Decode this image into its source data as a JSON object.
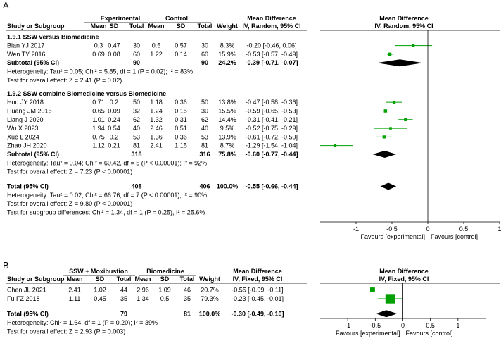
{
  "chart_data": [
    {
      "type": "forest",
      "panel_label": "A",
      "group_headers": [
        {
          "label": "Experimental"
        },
        {
          "label": "Control"
        }
      ],
      "column_headers": {
        "study": "Study or Subgroup",
        "mean1": "Mean",
        "sd1": "SD",
        "total1": "Total",
        "mean2": "Mean",
        "sd2": "SD",
        "total2": "Total",
        "weight": "Weight",
        "md_title": "Mean Difference",
        "md_method": "IV, Random, 95% CI",
        "plot_title": "Mean Difference",
        "plot_method": "IV, Random, 95% CI"
      },
      "subgroups": [
        {
          "title": "1.9.1 SSW versus Biomedicine",
          "studies": [
            {
              "name": "Bian YJ 2017",
              "mean1": "0.3",
              "sd1": "0.47",
              "n1": "30",
              "mean2": "0.5",
              "sd2": "0.57",
              "n2": "30",
              "weight": "8.3%",
              "ci_text": "-0.20 [-0.46, 0.06]",
              "md": -0.2,
              "lo": -0.46,
              "hi": 0.06,
              "w": 8.3
            },
            {
              "name": "Wen TY 2016",
              "mean1": "0.69",
              "sd1": "0.08",
              "n1": "60",
              "mean2": "1.22",
              "sd2": "0.14",
              "n2": "60",
              "weight": "15.9%",
              "ci_text": "-0.53 [-0.57, -0.49]",
              "md": -0.53,
              "lo": -0.57,
              "hi": -0.49,
              "w": 15.9
            }
          ],
          "subtotal": {
            "label": "Subtotal (95% CI)",
            "n1": "90",
            "n2": "90",
            "weight": "24.2%",
            "ci_text": "-0.39 [-0.71, -0.07]",
            "md": -0.39,
            "lo": -0.71,
            "hi": -0.07
          },
          "heterogeneity": "Heterogeneity: Tau² = 0.05; Chi² = 5.85, df = 1 (P = 0.02); I² = 83%",
          "overall_effect": "Test for overall effect: Z = 2.41 (P = 0.02)"
        },
        {
          "title": "1.9.2 SSW combine Biomedicine versus Biomedicine",
          "studies": [
            {
              "name": "Hou JY 2018",
              "mean1": "0.71",
              "sd1": "0.2",
              "n1": "50",
              "mean2": "1.18",
              "sd2": "0.36",
              "n2": "50",
              "weight": "13.8%",
              "ci_text": "-0.47 [-0.58, -0.36]",
              "md": -0.47,
              "lo": -0.58,
              "hi": -0.36,
              "w": 13.8
            },
            {
              "name": "Huang JM 2016",
              "mean1": "0.65",
              "sd1": "0.09",
              "n1": "32",
              "mean2": "1.24",
              "sd2": "0.15",
              "n2": "30",
              "weight": "15.5%",
              "ci_text": "-0.59 [-0.65, -0.53]",
              "md": -0.59,
              "lo": -0.65,
              "hi": -0.53,
              "w": 15.5
            },
            {
              "name": "Liang J 2020",
              "mean1": "1.01",
              "sd1": "0.24",
              "n1": "62",
              "mean2": "1.32",
              "sd2": "0.31",
              "n2": "62",
              "weight": "14.4%",
              "ci_text": "-0.31 [-0.41, -0.21]",
              "md": -0.31,
              "lo": -0.41,
              "hi": -0.21,
              "w": 14.4
            },
            {
              "name": "Wu X 2023",
              "mean1": "1.94",
              "sd1": "0.54",
              "n1": "40",
              "mean2": "2.46",
              "sd2": "0.51",
              "n2": "40",
              "weight": "9.5%",
              "ci_text": "-0.52 [-0.75, -0.29]",
              "md": -0.52,
              "lo": -0.75,
              "hi": -0.29,
              "w": 9.5
            },
            {
              "name": "Xue L 2024",
              "mean1": "0.75",
              "sd1": "0.2",
              "n1": "53",
              "mean2": "1.36",
              "sd2": "0.36",
              "n2": "53",
              "weight": "13.9%",
              "ci_text": "-0.61 [-0.72, -0.50]",
              "md": -0.61,
              "lo": -0.72,
              "hi": -0.5,
              "w": 13.9
            },
            {
              "name": "Zhao JH 2020",
              "mean1": "1.12",
              "sd1": "0.21",
              "n1": "81",
              "mean2": "2.41",
              "sd2": "1.15",
              "n2": "81",
              "weight": "8.7%",
              "ci_text": "-1.29 [-1.54, -1.04]",
              "md": -1.29,
              "lo": -1.54,
              "hi": -1.04,
              "w": 8.7
            }
          ],
          "subtotal": {
            "label": "Subtotal (95% CI)",
            "n1": "318",
            "n2": "316",
            "weight": "75.8%",
            "ci_text": "-0.60 [-0.77, -0.44]",
            "md": -0.6,
            "lo": -0.77,
            "hi": -0.44
          },
          "heterogeneity": "Heterogeneity: Tau² = 0.04; Chi² = 60.42, df = 5 (P < 0.00001); I² = 92%",
          "overall_effect": "Test for overall effect: Z = 7.23 (P < 0.00001)"
        }
      ],
      "total": {
        "label": "Total (95% CI)",
        "n1": "408",
        "n2": "406",
        "weight": "100.0%",
        "ci_text": "-0.55 [-0.66, -0.44]",
        "md": -0.55,
        "lo": -0.66,
        "hi": -0.44
      },
      "total_heterogeneity": "Heterogeneity: Tau² = 0.02; Chi² = 66.76, df = 7 (P < 0.00001); I² = 90%",
      "total_effect": "Test for overall effect: Z = 9.80 (P < 0.00001)",
      "subgroup_differences": "Test for subgroup differences: Chi² = 1.34, df = 1 (P = 0.25), I² = 25.6%",
      "x_axis": {
        "min": -1.5,
        "max": 1.0,
        "ticks": [
          -1,
          -0.5,
          0,
          0.5,
          1
        ],
        "tick_labels": [
          "-1",
          "-0.5",
          "0",
          "0.5",
          "1"
        ]
      },
      "favours_left": "Favours [experimental]",
      "favours_right": "Favours [control]"
    },
    {
      "type": "forest",
      "panel_label": "B",
      "group_headers": [
        {
          "label": "SSW + Moxibustion"
        },
        {
          "label": "Biomedicine"
        }
      ],
      "column_headers": {
        "study": "Study or Subgroup",
        "mean1": "Mean",
        "sd1": "SD",
        "total1": "Total",
        "mean2": "Mean",
        "sd2": "SD",
        "total2": "Total",
        "weight": "Weight",
        "md_title": "Mean Difference",
        "md_method": "IV, Fixed, 95% CI",
        "plot_title": "Mean Difference",
        "plot_method": "IV, Fixed, 95% CI"
      },
      "studies": [
        {
          "name": "Chen JL 2021",
          "mean1": "2.41",
          "sd1": "1.02",
          "n1": "44",
          "mean2": "2.96",
          "sd2": "1.09",
          "n2": "46",
          "weight": "20.7%",
          "ci_text": "-0.55 [-0.99, -0.11]",
          "md": -0.55,
          "lo": -0.99,
          "hi": -0.11,
          "w": 20.7
        },
        {
          "name": "Fu FZ 2018",
          "mean1": "1.11",
          "sd1": "0.45",
          "n1": "35",
          "mean2": "1.34",
          "sd2": "0.5",
          "n2": "35",
          "weight": "79.3%",
          "ci_text": "-0.23 [-0.45, -0.01]",
          "md": -0.23,
          "lo": -0.45,
          "hi": -0.01,
          "w": 79.3
        }
      ],
      "total": {
        "label": "Total (95% CI)",
        "n1": "79",
        "n2": "81",
        "weight": "100.0%",
        "ci_text": "-0.30 [-0.49, -0.10]",
        "md": -0.3,
        "lo": -0.49,
        "hi": -0.1
      },
      "total_heterogeneity": "Heterogeneity: Chi² = 1.64, df = 1 (P = 0.20); I² = 39%",
      "total_effect": "Test for overall effect: Z = 2.93 (P = 0.003)",
      "x_axis": {
        "min": -1.5,
        "max": 1.5,
        "ticks": [
          -1,
          -0.5,
          0,
          0.5,
          1
        ],
        "tick_labels": [
          "-1",
          "-0.5",
          "0",
          "0.5",
          "1"
        ]
      },
      "favours_left": "Favours [experimental]",
      "favours_right": "Favours [control]"
    }
  ],
  "colors": {
    "accent": "#00a000",
    "text": "#000000",
    "line": "#000000"
  }
}
